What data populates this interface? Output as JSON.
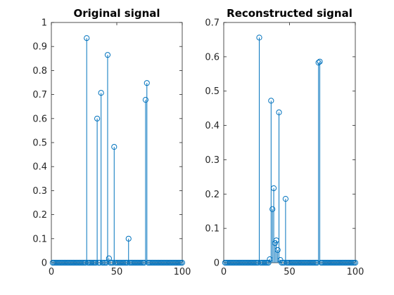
{
  "chart_data": [
    {
      "type": "stem",
      "title": "Original signal",
      "xlim": [
        0,
        100
      ],
      "ylim": [
        0,
        1
      ],
      "xticks": [
        "0",
        "50",
        "100"
      ],
      "yticks": [
        "0",
        "0.1",
        "0.2",
        "0.3",
        "0.4",
        "0.5",
        "0.6",
        "0.7",
        "0.8",
        "0.9",
        "1"
      ],
      "color": "#0072BD",
      "samples": 100,
      "points": [
        {
          "x": 27,
          "y": 0.935
        },
        {
          "x": 35,
          "y": 0.6
        },
        {
          "x": 38,
          "y": 0.707
        },
        {
          "x": 43,
          "y": 0.865
        },
        {
          "x": 44,
          "y": 0.018
        },
        {
          "x": 48,
          "y": 0.482
        },
        {
          "x": 59,
          "y": 0.1
        },
        {
          "x": 72,
          "y": 0.678
        },
        {
          "x": 73,
          "y": 0.748
        }
      ]
    },
    {
      "type": "stem",
      "title": "Reconstructed signal",
      "xlim": [
        0,
        100
      ],
      "ylim": [
        0,
        0.7
      ],
      "xticks": [
        "0",
        "50",
        "100"
      ],
      "yticks": [
        "0",
        "0.1",
        "0.2",
        "0.3",
        "0.4",
        "0.5",
        "0.6",
        "0.7"
      ],
      "color": "#0072BD",
      "samples": 100,
      "points": [
        {
          "x": 27,
          "y": 0.656
        },
        {
          "x": 35,
          "y": 0.01
        },
        {
          "x": 36,
          "y": 0.472
        },
        {
          "x": 37,
          "y": 0.156
        },
        {
          "x": 38,
          "y": 0.217
        },
        {
          "x": 39,
          "y": 0.057
        },
        {
          "x": 40,
          "y": 0.065
        },
        {
          "x": 41,
          "y": 0.037
        },
        {
          "x": 42,
          "y": 0.438
        },
        {
          "x": 43,
          "y": 0.008
        },
        {
          "x": 47,
          "y": 0.186
        },
        {
          "x": 72,
          "y": 0.583
        },
        {
          "x": 73,
          "y": 0.586
        }
      ]
    }
  ]
}
